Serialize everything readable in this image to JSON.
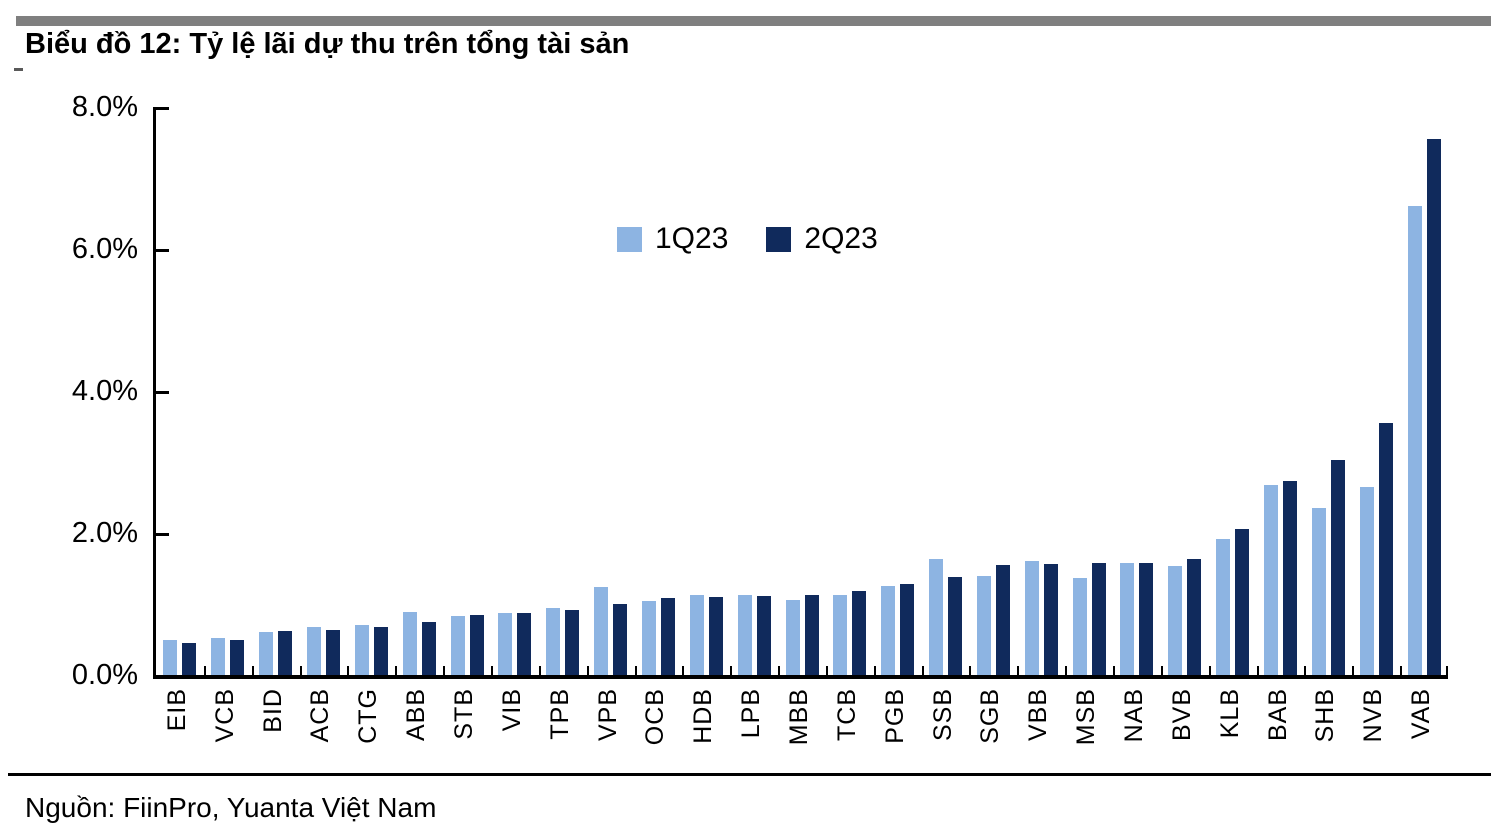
{
  "header": {
    "title": "Biểu đồ 12: Tỷ lệ lãi dự thu trên tổng tài sản"
  },
  "source": {
    "text": "Nguồn: FiinPro, Yuanta Việt Nam"
  },
  "colors": {
    "top_bar": "#7F7F7F",
    "series_1q23": "#8DB4E2",
    "series_2q23": "#102A5C",
    "axis": "#000000"
  },
  "chart_data": {
    "type": "bar",
    "title": "Biểu đồ 12: Tỷ lệ lãi dự thu trên tổng tài sản",
    "xlabel": "",
    "ylabel": "",
    "ylim": [
      0,
      8
    ],
    "ytick_labels": [
      "0.0%",
      "2.0%",
      "4.0%",
      "6.0%",
      "8.0%"
    ],
    "ytick_values": [
      0,
      2,
      4,
      6,
      8
    ],
    "grid": false,
    "legend_position": "top-center",
    "categories": [
      "EIB",
      "VCB",
      "BID",
      "ACB",
      "CTG",
      "ABB",
      "STB",
      "VIB",
      "TPB",
      "VPB",
      "OCB",
      "HDB",
      "LPB",
      "MBB",
      "TCB",
      "PGB",
      "SSB",
      "SGB",
      "VBB",
      "MSB",
      "NAB",
      "BVB",
      "KLB",
      "BAB",
      "SHB",
      "NVB",
      "VAB"
    ],
    "series": [
      {
        "name": "1Q23",
        "color": "#8DB4E2",
        "values": [
          0.5,
          0.52,
          0.6,
          0.68,
          0.71,
          0.89,
          0.83,
          0.87,
          0.95,
          1.24,
          1.04,
          1.12,
          1.12,
          1.06,
          1.13,
          1.25,
          1.63,
          1.4,
          1.61,
          1.36,
          1.58,
          1.53,
          1.92,
          2.67,
          2.35,
          2.65,
          6.6
        ]
      },
      {
        "name": "2Q23",
        "color": "#102A5C",
        "values": [
          0.45,
          0.49,
          0.62,
          0.64,
          0.68,
          0.74,
          0.84,
          0.88,
          0.92,
          1.0,
          1.08,
          1.1,
          1.11,
          1.13,
          1.18,
          1.28,
          1.38,
          1.55,
          1.56,
          1.58,
          1.58,
          1.63,
          2.05,
          2.73,
          3.03,
          3.55,
          7.55
        ]
      }
    ]
  }
}
